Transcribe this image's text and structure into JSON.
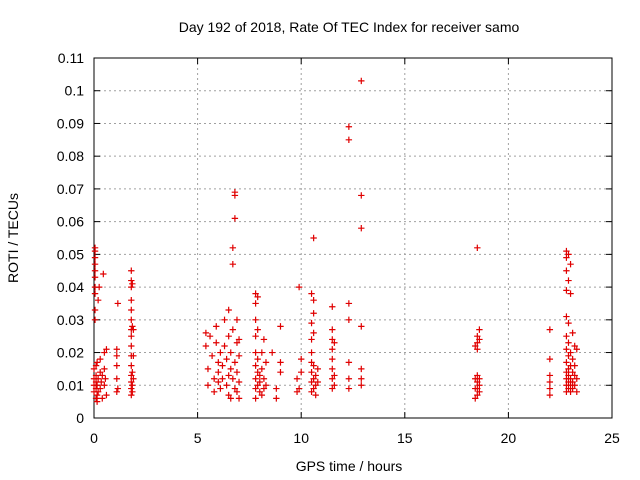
{
  "chart_data": {
    "type": "scatter",
    "title": "Day 192 of 2018, Rate Of TEC Index for receiver samo",
    "xlabel": "GPS time / hours",
    "ylabel": "ROTI / TECUs",
    "xlim": [
      0,
      25
    ],
    "ylim": [
      0,
      0.11
    ],
    "xticks": [
      0,
      5,
      10,
      15,
      20,
      25
    ],
    "xtick_labels": [
      "0",
      "5",
      "10",
      "15",
      "20",
      "25"
    ],
    "yticks": [
      0,
      0.01,
      0.02,
      0.03,
      0.04,
      0.05,
      0.06,
      0.07,
      0.08,
      0.09,
      0.1,
      0.11
    ],
    "ytick_labels": [
      "0",
      "0.01",
      "0.02",
      "0.03",
      "0.04",
      "0.05",
      "0.06",
      "0.07",
      "0.08",
      "0.09",
      "0.1",
      "0.11"
    ],
    "grid": true,
    "marker": "+",
    "series_color": "#e00000",
    "points": [
      [
        0.0,
        0.008
      ],
      [
        0.0,
        0.01
      ],
      [
        0.0,
        0.012
      ],
      [
        0.0,
        0.015
      ],
      [
        0.05,
        0.03
      ],
      [
        0.05,
        0.033
      ],
      [
        0.05,
        0.038
      ],
      [
        0.05,
        0.04
      ],
      [
        0.05,
        0.043
      ],
      [
        0.05,
        0.045
      ],
      [
        0.05,
        0.047
      ],
      [
        0.05,
        0.049
      ],
      [
        0.05,
        0.051
      ],
      [
        0.05,
        0.052
      ],
      [
        0.1,
        0.006
      ],
      [
        0.1,
        0.009
      ],
      [
        0.1,
        0.011
      ],
      [
        0.1,
        0.013
      ],
      [
        0.1,
        0.016
      ],
      [
        0.15,
        0.005
      ],
      [
        0.15,
        0.007
      ],
      [
        0.15,
        0.01
      ],
      [
        0.15,
        0.017
      ],
      [
        0.2,
        0.008
      ],
      [
        0.2,
        0.012
      ],
      [
        0.2,
        0.036
      ],
      [
        0.25,
        0.04
      ],
      [
        0.3,
        0.009
      ],
      [
        0.3,
        0.014
      ],
      [
        0.3,
        0.018
      ],
      [
        0.35,
        0.011
      ],
      [
        0.4,
        0.006
      ],
      [
        0.4,
        0.013
      ],
      [
        0.45,
        0.044
      ],
      [
        0.5,
        0.01
      ],
      [
        0.5,
        0.015
      ],
      [
        0.5,
        0.02
      ],
      [
        0.55,
        0.012
      ],
      [
        0.6,
        0.007
      ],
      [
        0.6,
        0.021
      ],
      [
        1.1,
        0.008
      ],
      [
        1.1,
        0.012
      ],
      [
        1.1,
        0.016
      ],
      [
        1.1,
        0.019
      ],
      [
        1.1,
        0.021
      ],
      [
        1.15,
        0.035
      ],
      [
        1.15,
        0.009
      ],
      [
        1.8,
        0.007
      ],
      [
        1.8,
        0.009
      ],
      [
        1.8,
        0.011
      ],
      [
        1.8,
        0.013
      ],
      [
        1.8,
        0.016
      ],
      [
        1.8,
        0.019
      ],
      [
        1.8,
        0.022
      ],
      [
        1.8,
        0.025
      ],
      [
        1.8,
        0.027
      ],
      [
        1.8,
        0.03
      ],
      [
        1.8,
        0.033
      ],
      [
        1.8,
        0.036
      ],
      [
        1.8,
        0.04
      ],
      [
        1.8,
        0.042
      ],
      [
        1.8,
        0.045
      ],
      [
        1.85,
        0.008
      ],
      [
        1.85,
        0.01
      ],
      [
        1.85,
        0.014
      ],
      [
        1.85,
        0.028
      ],
      [
        1.85,
        0.041
      ],
      [
        1.9,
        0.012
      ],
      [
        1.9,
        0.019
      ],
      [
        1.9,
        0.027
      ],
      [
        5.4,
        0.026
      ],
      [
        5.4,
        0.022
      ],
      [
        5.5,
        0.01
      ],
      [
        5.5,
        0.015
      ],
      [
        5.6,
        0.025
      ],
      [
        5.7,
        0.019
      ],
      [
        5.8,
        0.012
      ],
      [
        5.8,
        0.008
      ],
      [
        5.9,
        0.028
      ],
      [
        5.9,
        0.023
      ],
      [
        6.0,
        0.014
      ],
      [
        6.0,
        0.011
      ],
      [
        6.0,
        0.017
      ],
      [
        6.1,
        0.02
      ],
      [
        6.1,
        0.009
      ],
      [
        6.2,
        0.016
      ],
      [
        6.2,
        0.012
      ],
      [
        6.3,
        0.022
      ],
      [
        6.3,
        0.03
      ],
      [
        6.4,
        0.01
      ],
      [
        6.4,
        0.018
      ],
      [
        6.5,
        0.007
      ],
      [
        6.5,
        0.013
      ],
      [
        6.5,
        0.025
      ],
      [
        6.5,
        0.033
      ],
      [
        6.6,
        0.006
      ],
      [
        6.6,
        0.015
      ],
      [
        6.6,
        0.02
      ],
      [
        6.7,
        0.047
      ],
      [
        6.7,
        0.052
      ],
      [
        6.7,
        0.012
      ],
      [
        6.7,
        0.027
      ],
      [
        6.8,
        0.061
      ],
      [
        6.8,
        0.068
      ],
      [
        6.8,
        0.069
      ],
      [
        6.8,
        0.009
      ],
      [
        6.8,
        0.017
      ],
      [
        6.9,
        0.014
      ],
      [
        6.9,
        0.023
      ],
      [
        6.9,
        0.03
      ],
      [
        6.9,
        0.008
      ],
      [
        7.0,
        0.011
      ],
      [
        7.0,
        0.019
      ],
      [
        7.0,
        0.024
      ],
      [
        7.0,
        0.006
      ],
      [
        7.8,
        0.038
      ],
      [
        7.8,
        0.035
      ],
      [
        7.8,
        0.03
      ],
      [
        7.8,
        0.025
      ],
      [
        7.8,
        0.02
      ],
      [
        7.8,
        0.016
      ],
      [
        7.8,
        0.012
      ],
      [
        7.8,
        0.009
      ],
      [
        7.8,
        0.006
      ],
      [
        7.9,
        0.037
      ],
      [
        7.9,
        0.027
      ],
      [
        7.9,
        0.018
      ],
      [
        7.9,
        0.014
      ],
      [
        7.9,
        0.01
      ],
      [
        8.0,
        0.011
      ],
      [
        8.0,
        0.008
      ],
      [
        8.0,
        0.013
      ],
      [
        8.1,
        0.015
      ],
      [
        8.1,
        0.02
      ],
      [
        8.1,
        0.007
      ],
      [
        8.2,
        0.012
      ],
      [
        8.2,
        0.024
      ],
      [
        8.2,
        0.009
      ],
      [
        8.3,
        0.017
      ],
      [
        8.3,
        0.01
      ],
      [
        8.6,
        0.02
      ],
      [
        8.8,
        0.009
      ],
      [
        8.8,
        0.006
      ],
      [
        9.0,
        0.014
      ],
      [
        9.0,
        0.017
      ],
      [
        9.0,
        0.028
      ],
      [
        9.8,
        0.008
      ],
      [
        9.8,
        0.012
      ],
      [
        9.9,
        0.04
      ],
      [
        9.9,
        0.009
      ],
      [
        10.0,
        0.018
      ],
      [
        10.0,
        0.014
      ],
      [
        10.5,
        0.008
      ],
      [
        10.5,
        0.011
      ],
      [
        10.5,
        0.014
      ],
      [
        10.5,
        0.017
      ],
      [
        10.5,
        0.02
      ],
      [
        10.5,
        0.024
      ],
      [
        10.5,
        0.029
      ],
      [
        10.5,
        0.038
      ],
      [
        10.6,
        0.055
      ],
      [
        10.6,
        0.036
      ],
      [
        10.6,
        0.032
      ],
      [
        10.6,
        0.026
      ],
      [
        10.6,
        0.016
      ],
      [
        10.6,
        0.012
      ],
      [
        10.6,
        0.009
      ],
      [
        10.7,
        0.01
      ],
      [
        10.7,
        0.013
      ],
      [
        10.7,
        0.007
      ],
      [
        10.8,
        0.015
      ],
      [
        10.8,
        0.011
      ],
      [
        11.5,
        0.034
      ],
      [
        11.5,
        0.027
      ],
      [
        11.5,
        0.024
      ],
      [
        11.5,
        0.021
      ],
      [
        11.5,
        0.018
      ],
      [
        11.5,
        0.015
      ],
      [
        11.5,
        0.012
      ],
      [
        11.5,
        0.009
      ],
      [
        11.6,
        0.023
      ],
      [
        11.6,
        0.013
      ],
      [
        11.6,
        0.01
      ],
      [
        12.3,
        0.089
      ],
      [
        12.3,
        0.085
      ],
      [
        12.3,
        0.035
      ],
      [
        12.3,
        0.03
      ],
      [
        12.3,
        0.017
      ],
      [
        12.3,
        0.012
      ],
      [
        12.3,
        0.009
      ],
      [
        12.9,
        0.103
      ],
      [
        12.9,
        0.068
      ],
      [
        12.9,
        0.058
      ],
      [
        12.9,
        0.028
      ],
      [
        12.9,
        0.015
      ],
      [
        12.9,
        0.012
      ],
      [
        12.9,
        0.01
      ],
      [
        18.5,
        0.052
      ],
      [
        18.5,
        0.025
      ],
      [
        18.5,
        0.023
      ],
      [
        18.5,
        0.021
      ],
      [
        18.5,
        0.013
      ],
      [
        18.5,
        0.011
      ],
      [
        18.5,
        0.009
      ],
      [
        18.5,
        0.007
      ],
      [
        18.6,
        0.027
      ],
      [
        18.6,
        0.024
      ],
      [
        18.6,
        0.012
      ],
      [
        18.6,
        0.01
      ],
      [
        18.6,
        0.008
      ],
      [
        18.4,
        0.022
      ],
      [
        18.4,
        0.012
      ],
      [
        18.4,
        0.009
      ],
      [
        18.4,
        0.006
      ],
      [
        22.0,
        0.027
      ],
      [
        22.0,
        0.018
      ],
      [
        22.0,
        0.013
      ],
      [
        22.0,
        0.011
      ],
      [
        22.0,
        0.009
      ],
      [
        22.0,
        0.007
      ],
      [
        22.8,
        0.051
      ],
      [
        22.8,
        0.049
      ],
      [
        22.8,
        0.045
      ],
      [
        22.8,
        0.039
      ],
      [
        22.8,
        0.031
      ],
      [
        22.8,
        0.025
      ],
      [
        22.8,
        0.021
      ],
      [
        22.8,
        0.017
      ],
      [
        22.8,
        0.014
      ],
      [
        22.8,
        0.012
      ],
      [
        22.8,
        0.01
      ],
      [
        22.8,
        0.008
      ],
      [
        22.9,
        0.05
      ],
      [
        22.9,
        0.042
      ],
      [
        22.9,
        0.029
      ],
      [
        22.9,
        0.023
      ],
      [
        22.9,
        0.019
      ],
      [
        22.9,
        0.015
      ],
      [
        22.9,
        0.013
      ],
      [
        22.9,
        0.011
      ],
      [
        22.9,
        0.009
      ],
      [
        23.0,
        0.047
      ],
      [
        23.0,
        0.038
      ],
      [
        23.0,
        0.02
      ],
      [
        23.0,
        0.016
      ],
      [
        23.0,
        0.012
      ],
      [
        23.0,
        0.01
      ],
      [
        23.0,
        0.008
      ],
      [
        23.1,
        0.026
      ],
      [
        23.1,
        0.018
      ],
      [
        23.1,
        0.014
      ],
      [
        23.1,
        0.011
      ],
      [
        23.1,
        0.009
      ],
      [
        23.2,
        0.022
      ],
      [
        23.2,
        0.016
      ],
      [
        23.2,
        0.013
      ],
      [
        23.2,
        0.01
      ],
      [
        23.3,
        0.021
      ],
      [
        23.3,
        0.012
      ],
      [
        23.3,
        0.008
      ]
    ]
  }
}
